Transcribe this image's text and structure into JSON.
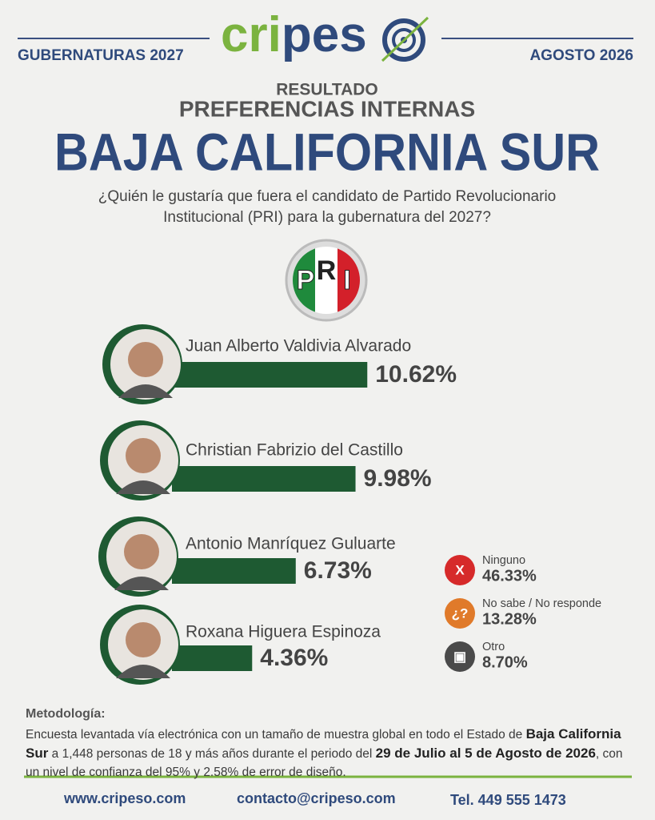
{
  "header": {
    "left": "GUBERNATURAS 2027",
    "right": "AGOSTO 2026",
    "logo": [
      "cri",
      "pes"
    ],
    "kicker": "RESULTADO",
    "subtitle": "PREFERENCIAS INTERNAS",
    "title": "BAJA CALIFORNIA SUR",
    "question": [
      "¿Quién le gustaría que fuera el candidato de Partido Revolucionario",
      "Institucional (PRI) para la gubernatura del 2027?"
    ],
    "party": [
      "P",
      "R",
      "I"
    ]
  },
  "chart_data": {
    "type": "bar",
    "orientation": "horizontal",
    "color": "#1e5a32",
    "categories": [
      "Juan Alberto Valdivia Alvarado",
      "Christian Fabrizio del Castillo",
      "Antonio Manríquez Guluarte",
      "Roxana Higuera Espinoza"
    ],
    "values": [
      10.62,
      9.98,
      6.73,
      4.36
    ],
    "value_labels": [
      "10.62%",
      "9.98%",
      "6.73%",
      "4.36%"
    ]
  },
  "other_responses": [
    {
      "label": "Ninguno",
      "value": "46.33%",
      "icon": "X",
      "color": "#d62a2a"
    },
    {
      "label": "No sabe / No responde",
      "value": "13.28%",
      "icon": "¿?",
      "color": "#e07a2a"
    },
    {
      "label": "Otro",
      "value": "8.70%",
      "icon": "▣",
      "color": "#4a4a4a"
    }
  ],
  "methodology": {
    "heading": "Metodología:",
    "body": [
      {
        "text": "Encuesta levantada vía electrónica con un tamaño de muestra global en todo el Estado de ",
        "bold": false
      },
      {
        "text": "Baja California Sur",
        "bold": true
      },
      {
        "text": " a 1,448 personas de 18 y más años durante el periodo del ",
        "bold": false
      },
      {
        "text": "29 de Julio al 5 de Agosto de 2026",
        "bold": true
      },
      {
        "text": ", con un nivel de confianza del 95% y 2.58% de error de diseño.",
        "bold": false
      }
    ]
  },
  "footer": [
    "www.cripeso.com",
    "contacto@cripeso.com",
    "Tel. 449 555 1473"
  ]
}
